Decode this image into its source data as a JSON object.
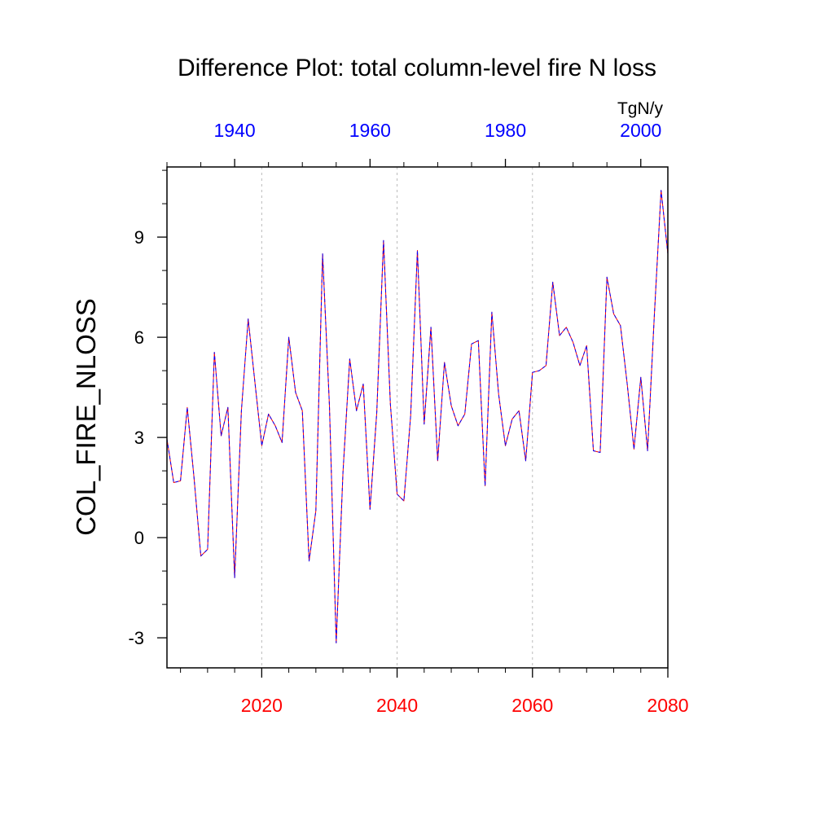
{
  "chart_data": {
    "type": "line",
    "title": "Difference Plot: total column-level fire N loss",
    "units": "TgN/y",
    "ylabel": "COL_FIRE_NLOSS",
    "ylim": [
      -3.9,
      11.1
    ],
    "yticks": [
      -3,
      0,
      3,
      6,
      9
    ],
    "ytick_labels": [
      "-3",
      "0",
      "3",
      "6",
      "9"
    ],
    "x_bottom": {
      "range": [
        2006,
        2080
      ],
      "ticks": [
        2020,
        2040,
        2060,
        2080
      ],
      "tick_labels": [
        "2020",
        "2040",
        "2060",
        "2080"
      ],
      "color": "#ff0000"
    },
    "x_top": {
      "range": [
        1930,
        2004
      ],
      "ticks": [
        1940,
        1960,
        1980,
        2000
      ],
      "tick_labels": [
        "1940",
        "1960",
        "1980",
        "2000"
      ],
      "color": "#0000ff"
    },
    "grid": "vertical dashed at major bottom ticks",
    "series": [
      {
        "color": "#ff0000",
        "style": "solid",
        "x": [
          2006,
          2007,
          2008,
          2009,
          2010,
          2011,
          2012,
          2013,
          2014,
          2015,
          2016,
          2017,
          2018,
          2019,
          2020,
          2021,
          2022,
          2023,
          2024,
          2025,
          2026,
          2027,
          2028,
          2029,
          2030,
          2031,
          2032,
          2033,
          2034,
          2035,
          2036,
          2037,
          2038,
          2039,
          2040,
          2041,
          2042,
          2043,
          2044,
          2045,
          2046,
          2047,
          2048,
          2049,
          2050,
          2051,
          2052,
          2053,
          2054,
          2055,
          2056,
          2057,
          2058,
          2059,
          2060,
          2061,
          2062,
          2063,
          2064,
          2065,
          2066,
          2067,
          2068,
          2069,
          2070,
          2071,
          2072,
          2073,
          2074,
          2075,
          2076,
          2077,
          2078,
          2079,
          2080
        ],
        "values": [
          2.95,
          1.65,
          1.7,
          3.9,
          1.8,
          -0.55,
          -0.35,
          5.55,
          3.05,
          3.9,
          -1.2,
          3.8,
          6.55,
          4.65,
          2.75,
          3.7,
          3.35,
          2.85,
          6.0,
          4.35,
          3.8,
          -0.7,
          0.8,
          8.5,
          3.95,
          -3.15,
          1.95,
          5.35,
          3.8,
          4.6,
          0.85,
          3.75,
          8.9,
          4.0,
          1.3,
          1.1,
          3.65,
          8.6,
          3.4,
          6.3,
          2.3,
          5.25,
          3.95,
          3.35,
          3.7,
          5.8,
          5.9,
          1.55,
          6.75,
          4.3,
          2.75,
          3.55,
          3.8,
          2.3,
          4.95,
          5.0,
          5.15,
          7.65,
          6.05,
          6.3,
          5.85,
          5.15,
          5.75,
          2.6,
          2.55,
          7.8,
          6.7,
          6.35,
          4.6,
          2.65,
          4.8,
          2.6,
          6.65,
          10.4,
          8.5
        ]
      },
      {
        "color": "#0000ff",
        "style": "dashed",
        "x": [
          2006,
          2007,
          2008,
          2009,
          2010,
          2011,
          2012,
          2013,
          2014,
          2015,
          2016,
          2017,
          2018,
          2019,
          2020,
          2021,
          2022,
          2023,
          2024,
          2025,
          2026,
          2027,
          2028,
          2029,
          2030,
          2031,
          2032,
          2033,
          2034,
          2035,
          2036,
          2037,
          2038,
          2039,
          2040,
          2041,
          2042,
          2043,
          2044,
          2045,
          2046,
          2047,
          2048,
          2049,
          2050,
          2051,
          2052,
          2053,
          2054,
          2055,
          2056,
          2057,
          2058,
          2059,
          2060,
          2061,
          2062,
          2063,
          2064,
          2065,
          2066,
          2067,
          2068,
          2069,
          2070,
          2071,
          2072,
          2073,
          2074,
          2075,
          2076,
          2077,
          2078,
          2079,
          2080
        ],
        "values": [
          2.95,
          1.65,
          1.7,
          3.9,
          1.8,
          -0.55,
          -0.35,
          5.55,
          3.05,
          3.9,
          -1.2,
          3.8,
          6.55,
          4.65,
          2.75,
          3.7,
          3.35,
          2.85,
          6.0,
          4.35,
          3.8,
          -0.7,
          0.8,
          8.5,
          3.95,
          -3.15,
          1.95,
          5.35,
          3.8,
          4.6,
          0.85,
          3.75,
          8.9,
          4.0,
          1.3,
          1.1,
          3.65,
          8.6,
          3.4,
          6.3,
          2.3,
          5.25,
          3.95,
          3.35,
          3.7,
          5.8,
          5.9,
          1.55,
          6.75,
          4.3,
          2.75,
          3.55,
          3.8,
          2.3,
          4.95,
          5.0,
          5.15,
          7.65,
          6.05,
          6.3,
          5.85,
          5.15,
          5.75,
          2.6,
          2.55,
          7.8,
          6.7,
          6.35,
          4.6,
          2.65,
          4.8,
          2.6,
          6.65,
          10.4,
          8.5
        ]
      }
    ]
  }
}
